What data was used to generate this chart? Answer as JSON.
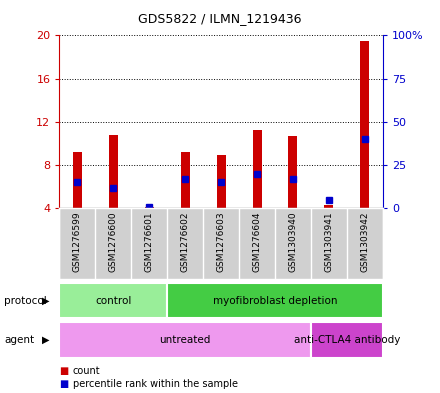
{
  "title": "GDS5822 / ILMN_1219436",
  "samples": [
    "GSM1276599",
    "GSM1276600",
    "GSM1276601",
    "GSM1276602",
    "GSM1276603",
    "GSM1276604",
    "GSM1303940",
    "GSM1303941",
    "GSM1303942"
  ],
  "counts": [
    9.2,
    10.8,
    4.1,
    9.2,
    8.9,
    11.2,
    10.7,
    4.3,
    19.5
  ],
  "percentiles": [
    15,
    12,
    1,
    17,
    15,
    20,
    17,
    5,
    40
  ],
  "ymin": 4,
  "ymax": 20,
  "yticks": [
    4,
    8,
    12,
    16,
    20
  ],
  "ytick_labels": [
    "4",
    "8",
    "12",
    "16",
    "20"
  ],
  "y2ticks": [
    0,
    25,
    50,
    75,
    100
  ],
  "y2tick_labels": [
    "0",
    "25",
    "50",
    "75",
    "100%"
  ],
  "bar_color": "#cc0000",
  "percentile_color": "#0000cc",
  "bar_width": 0.25,
  "protocol_groups": [
    {
      "label": "control",
      "start": 0,
      "end": 3,
      "color": "#99ee99"
    },
    {
      "label": "myofibroblast depletion",
      "start": 3,
      "end": 9,
      "color": "#44cc44"
    }
  ],
  "agent_groups": [
    {
      "label": "untreated",
      "start": 0,
      "end": 7,
      "color": "#ee99ee"
    },
    {
      "label": "anti-CTLA4 antibody",
      "start": 7,
      "end": 9,
      "color": "#cc44cc"
    }
  ],
  "ylabel_left_color": "#cc0000",
  "ylabel_right_color": "#0000cc",
  "legend_count_label": "count",
  "legend_percentile_label": "percentile rank within the sample",
  "bg_color": "#ffffff"
}
